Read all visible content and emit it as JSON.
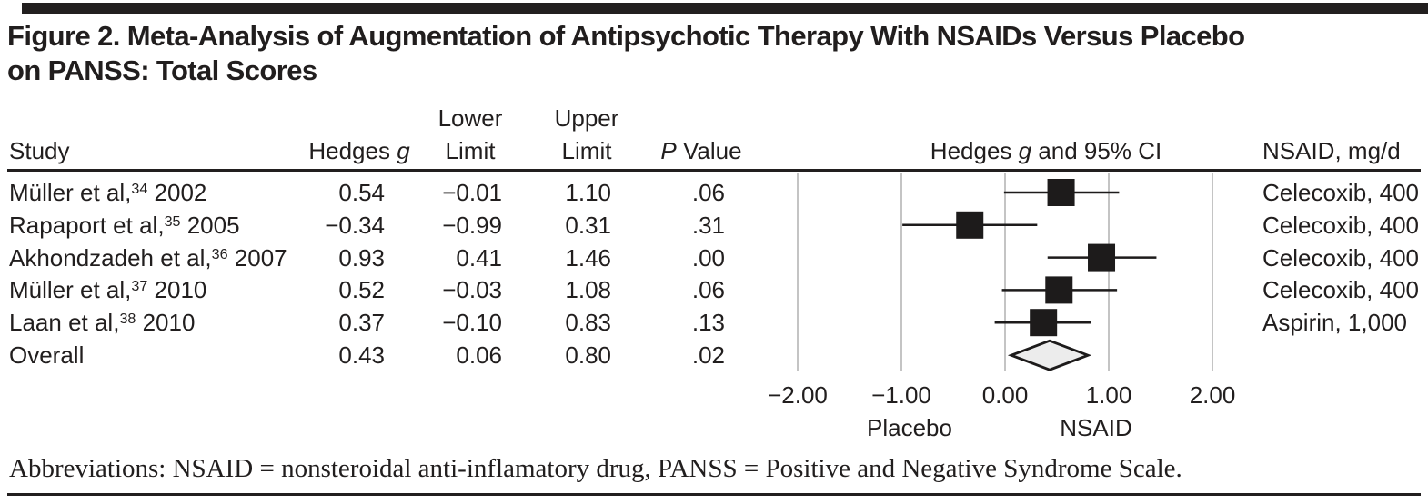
{
  "title": {
    "line1": "Figure 2. Meta-Analysis of Augmentation of Antipsychotic Therapy With NSAIDs Versus Placebo",
    "line2": "on PANSS: Total Scores"
  },
  "headers": {
    "study": "Study",
    "hedges_pre": "Hedges ",
    "hedges_g": "g",
    "lower_line1": "Lower",
    "lower_line2": "Limit",
    "upper_line1": "Upper",
    "upper_line2": "Limit",
    "p_italic": "P",
    "p_rest": " Value",
    "ci_pre": "Hedges ",
    "ci_g": "g",
    "ci_post": " and 95% CI",
    "nsaid": "NSAID, mg/d"
  },
  "rows": [
    {
      "study_pre": "Müller et al,",
      "study_ref": "34",
      "study_year": " 2002",
      "g": "0.54",
      "lower": "−0.01",
      "upper": "1.10",
      "p": ".06",
      "nsaid": "Celecoxib, 400"
    },
    {
      "study_pre": "Rapaport et al,",
      "study_ref": "35",
      "study_year": " 2005",
      "g": "−0.34",
      "lower": "−0.99",
      "upper": "0.31",
      "p": ".31",
      "nsaid": "Celecoxib, 400"
    },
    {
      "study_pre": "Akhondzadeh et al,",
      "study_ref": "36",
      "study_year": " 2007",
      "g": "0.93",
      "lower": "0.41",
      "upper": "1.46",
      "p": ".00",
      "nsaid": "Celecoxib, 400"
    },
    {
      "study_pre": "Müller et al,",
      "study_ref": "37",
      "study_year": " 2010",
      "g": "0.52",
      "lower": "−0.03",
      "upper": "1.08",
      "p": ".06",
      "nsaid": "Celecoxib, 400"
    },
    {
      "study_pre": "Laan et al,",
      "study_ref": "38",
      "study_year": " 2010",
      "g": "0.37",
      "lower": "−0.10",
      "upper": "0.83",
      "p": ".13",
      "nsaid": "Aspirin, 1,000"
    },
    {
      "study_pre": "Overall",
      "study_ref": "",
      "study_year": "",
      "g": "0.43",
      "lower": "0.06",
      "upper": "0.80",
      "p": ".02",
      "nsaid": ""
    }
  ],
  "chart_data": {
    "type": "scatter",
    "subtype": "forest-plot",
    "title": "Hedges g and 95% CI",
    "xlabel": "Hedges g",
    "xlim": [
      -2.5,
      2.5
    ],
    "x_ticks": [
      -2,
      -1,
      0,
      1,
      2
    ],
    "x_tick_labels": [
      "−2.00",
      "−1.00",
      "0.00",
      "1.00",
      "2.00"
    ],
    "grid": true,
    "direction_labels": {
      "negative": "Placebo",
      "positive": "NSAID"
    },
    "studies": [
      {
        "label": "Müller et al, 2002",
        "ref": 34,
        "g": 0.54,
        "lower": -0.01,
        "upper": 1.1,
        "p": 0.06,
        "nsaid": "Celecoxib, 400"
      },
      {
        "label": "Rapaport et al, 2005",
        "ref": 35,
        "g": -0.34,
        "lower": -0.99,
        "upper": 0.31,
        "p": 0.31,
        "nsaid": "Celecoxib, 400"
      },
      {
        "label": "Akhondzadeh et al, 2007",
        "ref": 36,
        "g": 0.93,
        "lower": 0.41,
        "upper": 1.46,
        "p": 0.0,
        "nsaid": "Celecoxib, 400"
      },
      {
        "label": "Müller et al, 2010",
        "ref": 37,
        "g": 0.52,
        "lower": -0.03,
        "upper": 1.08,
        "p": 0.06,
        "nsaid": "Celecoxib, 400"
      },
      {
        "label": "Laan et al, 2010",
        "ref": 38,
        "g": 0.37,
        "lower": -0.1,
        "upper": 0.83,
        "p": 0.13,
        "nsaid": "Aspirin, 1,000"
      }
    ],
    "overall": {
      "label": "Overall",
      "g": 0.43,
      "lower": 0.06,
      "upper": 0.8,
      "p": 0.02
    }
  },
  "axis": {
    "tick_labels": [
      "−2.00",
      "−1.00",
      "0.00",
      "1.00",
      "2.00"
    ],
    "left_label": "Placebo",
    "right_label": "NSAID"
  },
  "footer": "Abbreviations: NSAID = nonsteroidal anti-inflamatory drug, PANSS = Positive and Negative Syndrome Scale.",
  "colors": {
    "text": "#211e1e",
    "rule": "#221f1f",
    "gridline": "#c4c4c4",
    "marker": "#1d1b1b",
    "diamond_fill": "#ececec"
  }
}
